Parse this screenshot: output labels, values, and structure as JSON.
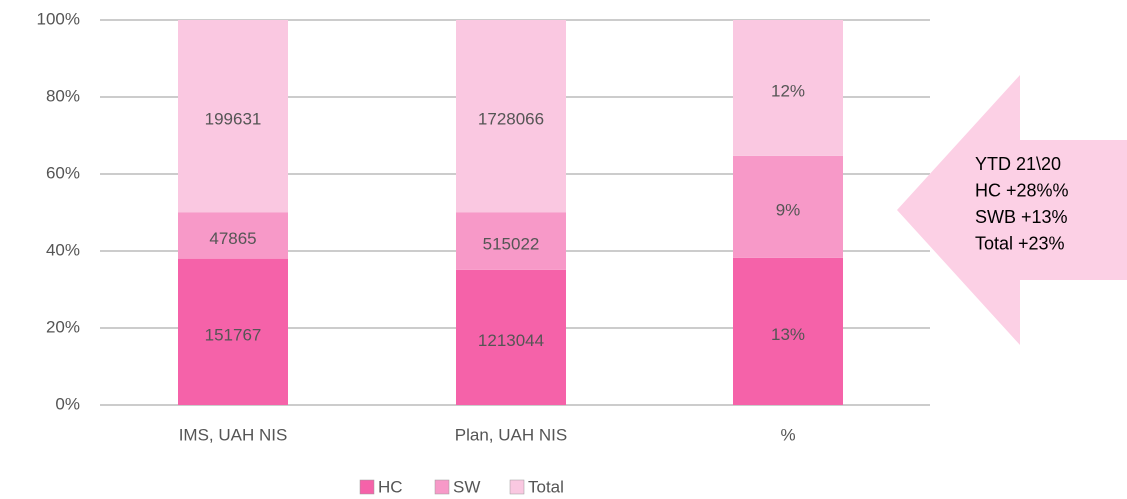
{
  "chart_data": {
    "type": "stacked_bar_percent",
    "categories": [
      "IMS, UAH NIS",
      "Plan, UAH NIS",
      "%"
    ],
    "series": [
      {
        "name": "HC",
        "color": "#f562a9",
        "values": [
          151767,
          1213044,
          13
        ],
        "value_labels": [
          "151767",
          "1213044",
          "13%"
        ]
      },
      {
        "name": "SW",
        "color": "#f799c8",
        "values": [
          47865,
          515022,
          9
        ],
        "value_labels": [
          "47865",
          "515022",
          "9%"
        ]
      },
      {
        "name": "Total",
        "color": "#fac8e1",
        "values": [
          199631,
          1728066,
          12
        ],
        "value_labels": [
          "199631",
          "1728066",
          "12%"
        ]
      }
    ],
    "ylim": [
      0,
      100
    ],
    "yticks": [
      {
        "value": 0,
        "label": "0%"
      },
      {
        "value": 20,
        "label": "20%"
      },
      {
        "value": 40,
        "label": "40%"
      },
      {
        "value": 60,
        "label": "60%"
      },
      {
        "value": 80,
        "label": "80%"
      },
      {
        "value": 100,
        "label": "100%"
      }
    ],
    "grid": true,
    "legend": "bottom",
    "annotation": {
      "lines": [
        "YTD 21\\20",
        "HC +28%%",
        "SWB +13%",
        "Total +23%"
      ],
      "color": "#fcd0e5"
    }
  }
}
